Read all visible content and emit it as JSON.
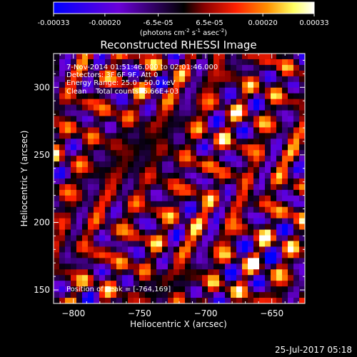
{
  "chart_data": {
    "type": "heatmap",
    "title": "Reconstructed RHESSI Image",
    "colorbar": {
      "ticks": [
        "-0.00033",
        "-0.00020",
        "-6.5e-05",
        "6.5e-05",
        "0.00020",
        "0.00033"
      ],
      "tick_values": [
        -0.00033,
        -0.0002,
        -6.5e-05,
        6.5e-05,
        0.0002,
        0.00033
      ],
      "range": [
        -0.00033,
        0.00033
      ],
      "colors": [
        "#0000ff",
        "#6a00d8",
        "#000000",
        "#8b0000",
        "#ff2000",
        "#ff9000",
        "#ffff60",
        "#ffffff"
      ]
    },
    "unit_label_parts": [
      "(photons cm",
      "-2",
      " s",
      "-1",
      " asec",
      "-2",
      ")"
    ],
    "xlabel": "Heliocentric X (arcsec)",
    "ylabel": "Heliocentric Y (arcsec)",
    "xlim": [
      -815,
      -625
    ],
    "ylim": [
      140,
      325
    ],
    "x_ticks": [
      -800,
      -750,
      -700,
      -650
    ],
    "y_ticks": [
      150,
      200,
      250,
      300
    ],
    "x_tick_labels": [
      "−800",
      "−750",
      "−700",
      "−650"
    ],
    "y_tick_labels": [
      "150",
      "200",
      "250",
      "300"
    ],
    "annotations": [
      "7-Nov-2014 01:51:46.000 to 02:01:46.000",
      "Detectors: 3F 6F 9F, Att 0",
      "Energy Range: 25.0 - 50.0 keV",
      "Clean    Total counts: 5.66E+03"
    ],
    "peak_label": "Position of Peak = [-764,169]",
    "peak": [
      -764,
      169
    ]
  },
  "footer": {
    "date": "25-Jul-2017 05:18"
  }
}
